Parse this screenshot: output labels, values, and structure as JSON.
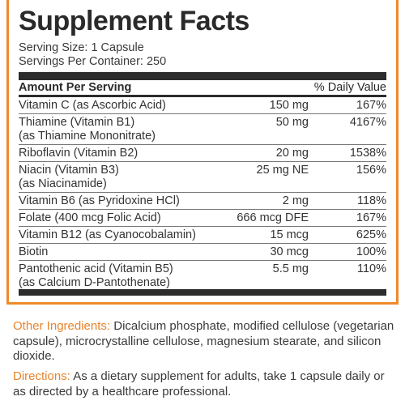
{
  "panel": {
    "title": "Supplement Facts",
    "serving_size": "Serving Size: 1 Capsule",
    "servings_per_container": "Servings Per Container: 250",
    "header_amount": "Amount Per Serving",
    "header_dv": "% Daily Value",
    "rows": [
      {
        "name": "Vitamin C (as Ascorbic Acid)",
        "amount": "150 mg",
        "dv": "167%"
      },
      {
        "name": "Thiamine (Vitamin B1)",
        "name2": "(as Thiamine Mononitrate)",
        "amount": "50 mg",
        "dv": "4167%"
      },
      {
        "name": "Riboflavin (Vitamin B2)",
        "amount": "20 mg",
        "dv": "1538%"
      },
      {
        "name": "Niacin (Vitamin B3)",
        "name2": "(as Niacinamide)",
        "amount": "25 mg NE",
        "dv": "156%"
      },
      {
        "name": "Vitamin B6 (as Pyridoxine HCl)",
        "amount": "2 mg",
        "dv": "118%"
      },
      {
        "name": "Folate (400 mcg Folic Acid)",
        "amount": "666 mcg DFE",
        "dv": "167%"
      },
      {
        "name": "Vitamin B12 (as Cyanocobalamin)",
        "amount": "15 mcg",
        "dv": "625%"
      },
      {
        "name": "Biotin",
        "amount": "30 mcg",
        "dv": "100%"
      },
      {
        "name": "Pantothenic acid (Vitamin B5)",
        "name2": "(as Calcium D-Pantothenate)",
        "amount": "5.5 mg",
        "dv": "110%"
      }
    ]
  },
  "other_ingredients": {
    "label": "Other Ingredients:",
    "text": " Dicalcium phosphate, modified cellulose (vegetarian capsule), microcrystalline cellulose,  magnesium stearate, and silicon dioxide."
  },
  "directions": {
    "label": "Directions:",
    "text": " As a dietary supplement for adults, take 1 capsule daily or as directed by a healthcare professional."
  },
  "colors": {
    "accent": "#ee8a2a",
    "text": "#333333",
    "rule": "#2c2c2c"
  }
}
